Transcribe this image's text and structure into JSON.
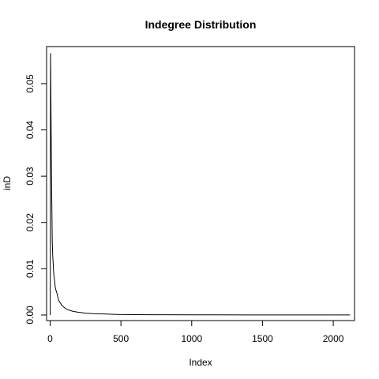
{
  "chart_data": {
    "type": "line",
    "title": "Indegree Distribution",
    "xlabel": "Index",
    "ylabel": "inD",
    "xlim": [
      -25,
      2150
    ],
    "ylim": [
      -0.0012,
      0.058
    ],
    "x_ticks": [
      {
        "value": 0,
        "label": "0"
      },
      {
        "value": 500,
        "label": "500"
      },
      {
        "value": 1000,
        "label": "1000"
      },
      {
        "value": 1500,
        "label": "1500"
      },
      {
        "value": 2000,
        "label": "2000"
      }
    ],
    "y_ticks": [
      {
        "value": 0.0,
        "label": "0.00"
      },
      {
        "value": 0.01,
        "label": "0.01"
      },
      {
        "value": 0.02,
        "label": "0.02"
      },
      {
        "value": 0.03,
        "label": "0.03"
      },
      {
        "value": 0.04,
        "label": "0.04"
      },
      {
        "value": 0.05,
        "label": "0.05"
      }
    ],
    "grid": false,
    "legend": "none",
    "line_color": "#000000",
    "series": [
      {
        "x": [
          1,
          3,
          6,
          9,
          12,
          15,
          18,
          21,
          24,
          27,
          30,
          33,
          36,
          40,
          45,
          50,
          55,
          60,
          70,
          80,
          90,
          100,
          110,
          120,
          140,
          160,
          180,
          200,
          225,
          250,
          275,
          300,
          350,
          400,
          450,
          500,
          600,
          700,
          800,
          1000,
          1200,
          1400,
          1600,
          1800,
          2000,
          2118
        ],
        "y": [
          0.0,
          0.0565,
          0.045,
          0.032,
          0.024,
          0.016,
          0.013,
          0.0115,
          0.0095,
          0.0085,
          0.0078,
          0.0071,
          0.006,
          0.0055,
          0.005,
          0.0045,
          0.0038,
          0.0032,
          0.0027,
          0.0022,
          0.0019,
          0.0016,
          0.0014,
          0.0012,
          0.001,
          0.0008,
          0.0007,
          0.0006,
          0.0005,
          0.0004,
          0.00035,
          0.0003,
          0.00025,
          0.0002,
          0.00015,
          0.0001,
          8e-05,
          6e-05,
          5e-05,
          4e-05,
          3e-05,
          2e-05,
          2e-05,
          1e-05,
          1e-05,
          1e-05
        ]
      }
    ]
  }
}
